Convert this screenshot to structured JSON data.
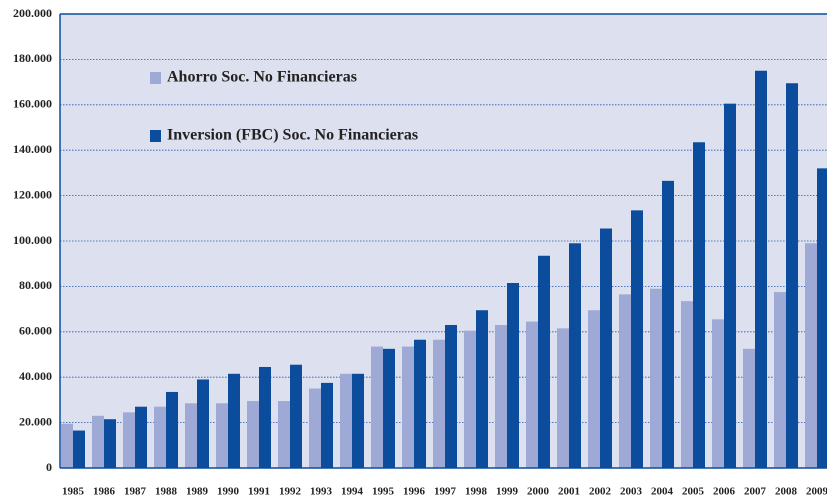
{
  "chart_data": {
    "type": "bar",
    "categories": [
      "1985",
      "1986",
      "1987",
      "1988",
      "1989",
      "1990",
      "1991",
      "1992",
      "1993",
      "1994",
      "1995",
      "1996",
      "1997",
      "1998",
      "1999",
      "2000",
      "2001",
      "2002",
      "2003",
      "2004",
      "2005",
      "2006",
      "2007",
      "2008",
      "2009"
    ],
    "series": [
      {
        "name": "Ahorro Soc. No Financieras",
        "color": "#9ea9d6",
        "values": [
          19500,
          23000,
          24500,
          27000,
          28500,
          28500,
          29500,
          29500,
          35000,
          41500,
          53500,
          53500,
          56500,
          60500,
          63000,
          64500,
          61500,
          69500,
          76500,
          79000,
          73500,
          65500,
          52500,
          77500,
          99000
        ]
      },
      {
        "name": "Inversion (FBC) Soc. No Financieras",
        "color": "#0b4d9c",
        "values": [
          16500,
          21500,
          27000,
          33500,
          39000,
          41500,
          44500,
          45500,
          37500,
          41500,
          52500,
          56500,
          63000,
          69500,
          81500,
          93500,
          99000,
          105500,
          113500,
          126500,
          143500,
          160500,
          175000,
          169500,
          132000
        ]
      }
    ],
    "ylim": [
      0,
      200000
    ],
    "yticks": [
      0,
      {
        "value": 20000,
        "label": "20.000"
      },
      {
        "value": 40000,
        "label": "40.000"
      },
      {
        "value": 60000,
        "label": "60.000"
      },
      {
        "value": 80000,
        "label": "80.000"
      },
      {
        "value": 100000,
        "label": "100.000"
      },
      {
        "value": 120000,
        "label": "120.000"
      },
      {
        "value": 140000,
        "label": "140.000"
      },
      {
        "value": 160000,
        "label": "160.000"
      },
      {
        "value": 180000,
        "label": "180.000"
      },
      {
        "value": 200000,
        "label": "200.000"
      }
    ],
    "grid": true,
    "legend": "upper-left"
  }
}
